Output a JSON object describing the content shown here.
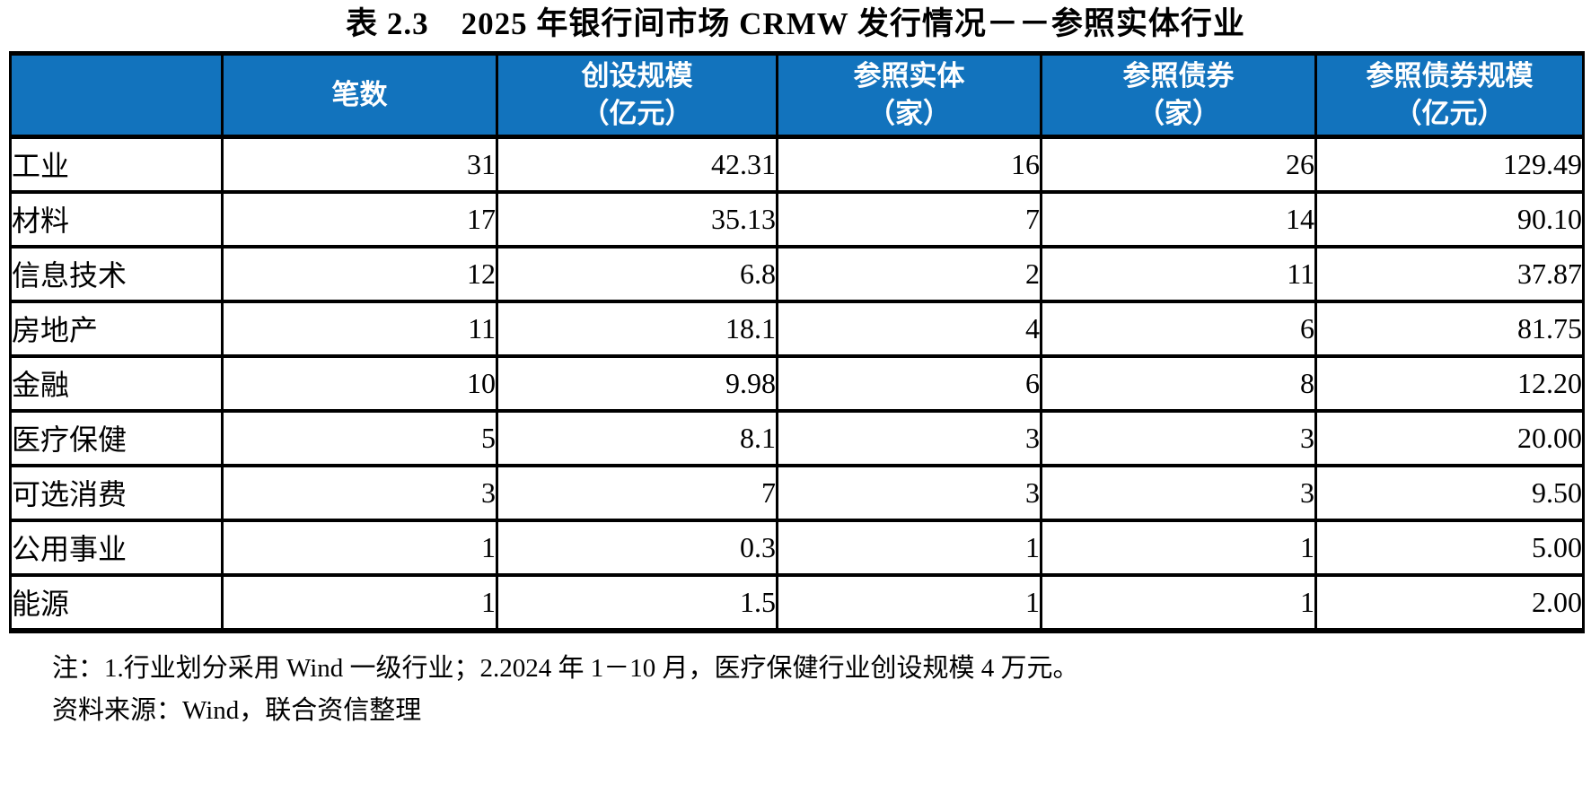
{
  "title": "表 2.3　2025 年银行间市场 CRMW 发行情况－－参照实体行业",
  "colors": {
    "header_bg": "#1273BD",
    "header_text": "#FFFFFF",
    "border": "#000000",
    "body_text": "#000000",
    "page_bg": "#FFFFFF"
  },
  "table": {
    "columns": [
      {
        "label": ""
      },
      {
        "label": "笔数"
      },
      {
        "label": "创设规模\n（亿元）"
      },
      {
        "label": "参照实体\n（家）"
      },
      {
        "label": "参照债券\n（家）"
      },
      {
        "label": "参照债券规模\n（亿元）"
      }
    ],
    "rows": [
      {
        "industry": "工业",
        "values": [
          "31",
          "42.31",
          "16",
          "26",
          "129.49"
        ]
      },
      {
        "industry": "材料",
        "values": [
          "17",
          "35.13",
          "7",
          "14",
          "90.10"
        ]
      },
      {
        "industry": "信息技术",
        "values": [
          "12",
          "6.8",
          "2",
          "11",
          "37.87"
        ]
      },
      {
        "industry": "房地产",
        "values": [
          "11",
          "18.1",
          "4",
          "6",
          "81.75"
        ]
      },
      {
        "industry": "金融",
        "values": [
          "10",
          "9.98",
          "6",
          "8",
          "12.20"
        ]
      },
      {
        "industry": "医疗保健",
        "values": [
          "5",
          "8.1",
          "3",
          "3",
          "20.00"
        ]
      },
      {
        "industry": "可选消费",
        "values": [
          "3",
          "7",
          "3",
          "3",
          "9.50"
        ]
      },
      {
        "industry": "公用事业",
        "values": [
          "1",
          "0.3",
          "1",
          "1",
          "5.00"
        ]
      },
      {
        "industry": "能源",
        "values": [
          "1",
          "1.5",
          "1",
          "1",
          "2.00"
        ]
      }
    ]
  },
  "notes": {
    "note": "注：1.行业划分采用 Wind 一级行业；2.2024 年 1－10 月，医疗保健行业创设规模 4 万元。",
    "source": "资料来源：Wind，联合资信整理"
  }
}
